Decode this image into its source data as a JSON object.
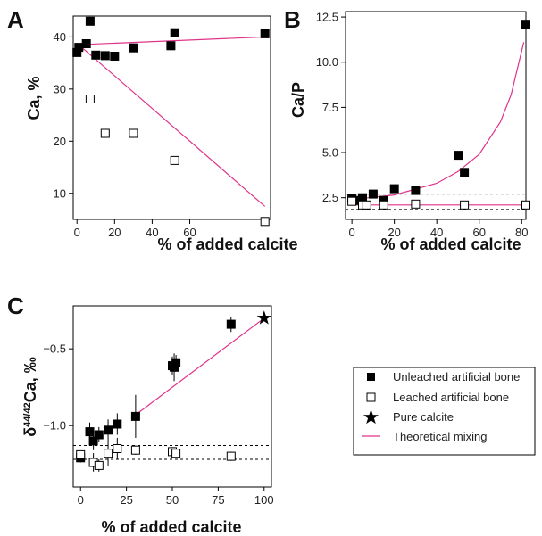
{
  "colors": {
    "mixing_line": "#e0338a",
    "marker_filled": "#000000",
    "marker_open_fill": "#ffffff",
    "reference_line": "#000000"
  },
  "legend": {
    "items": [
      {
        "label": "Unleached artificial bone",
        "marker": "filled-square"
      },
      {
        "label": "Leached artificial bone",
        "marker": "open-square"
      },
      {
        "label": "Pure calcite",
        "marker": "star"
      },
      {
        "label": "Theoretical mixing",
        "marker": "line"
      }
    ]
  },
  "chart_data": [
    {
      "panel": "A",
      "type": "scatter",
      "xlabel": "% of added calcite",
      "ylabel": "Ca, %",
      "xlim": [
        -2,
        103
      ],
      "ylim": [
        5,
        44
      ],
      "xticks": [
        0,
        20,
        40,
        60
      ],
      "yticks": [
        10,
        20,
        30,
        40
      ],
      "series": [
        {
          "marker": "filled-square",
          "x": [
            0,
            1,
            5,
            7,
            10,
            15,
            20,
            30,
            50,
            52,
            100
          ],
          "y": [
            37,
            38,
            38.7,
            43,
            36.5,
            36.4,
            36.3,
            37.9,
            38.3,
            40.8,
            40.6
          ]
        },
        {
          "marker": "open-square",
          "x": [
            7,
            15,
            30,
            52,
            100
          ],
          "y": [
            28.1,
            21.5,
            21.5,
            16.3,
            4.6
          ]
        },
        {
          "marker": "line",
          "x": [
            0,
            100
          ],
          "y": [
            38.5,
            40
          ]
        },
        {
          "marker": "line",
          "x": [
            0,
            100
          ],
          "y": [
            38.8,
            7.5
          ]
        }
      ]
    },
    {
      "panel": "B",
      "type": "scatter",
      "xlabel": "% of added calcite",
      "ylabel": "Ca/P",
      "xlim": [
        -3,
        82
      ],
      "ylim": [
        1.3,
        12.8
      ],
      "xticks": [
        0,
        20,
        40,
        60,
        80
      ],
      "yticks": [
        "2.5",
        "5.0",
        "7.5",
        "10.0",
        "12.5"
      ],
      "hlines": [
        2.7,
        1.85
      ],
      "series": [
        {
          "marker": "filled-square",
          "x": [
            0,
            1,
            5,
            10,
            15,
            20,
            30,
            50,
            53,
            82
          ],
          "y": [
            2.45,
            2.35,
            2.5,
            2.7,
            2.35,
            3.0,
            2.9,
            4.85,
            3.9,
            12.1
          ]
        },
        {
          "marker": "open-square",
          "x": [
            0,
            5,
            7,
            15,
            30,
            53,
            82
          ],
          "y": [
            2.3,
            2.1,
            2.1,
            2.1,
            2.15,
            2.1,
            2.1
          ]
        },
        {
          "marker": "line",
          "x": [
            0,
            20,
            40,
            50,
            60,
            70,
            75,
            81
          ],
          "y": [
            2.4,
            2.65,
            3.3,
            3.95,
            4.9,
            6.7,
            8.2,
            11.1
          ]
        },
        {
          "marker": "line",
          "x": [
            0,
            81
          ],
          "y": [
            2.1,
            2.1
          ]
        }
      ]
    },
    {
      "panel": "C",
      "type": "scatter",
      "xlabel": "% of added calcite",
      "ylabel": "δ44/42Ca, ‰",
      "ylabel_parts": {
        "delta": "δ",
        "superscript": "44/42",
        "rest": "Ca, ‰"
      },
      "xlim": [
        -4,
        104
      ],
      "ylim": [
        -1.4,
        -0.22
      ],
      "xticks": [
        0,
        25,
        50,
        75,
        100
      ],
      "yticks": [
        "−1.0",
        "−0.5"
      ],
      "hlines": [
        -1.13,
        -1.22
      ],
      "series": [
        {
          "marker": "filled-square",
          "x": [
            0,
            5,
            7,
            10,
            15,
            20,
            30,
            50,
            51,
            52,
            82
          ],
          "y": [
            -1.21,
            -1.04,
            -1.1,
            -1.06,
            -1.03,
            -0.99,
            -0.94,
            -0.61,
            -0.62,
            -0.59,
            -0.34
          ],
          "err": [
            0.03,
            0.06,
            0.06,
            0.05,
            0.07,
            0.07,
            0.14,
            0.06,
            0.09,
            0.05,
            0.05
          ]
        },
        {
          "marker": "open-square",
          "x": [
            0,
            7,
            10,
            15,
            20,
            30,
            50,
            52,
            82
          ],
          "y": [
            -1.19,
            -1.24,
            -1.26,
            -1.18,
            -1.15,
            -1.16,
            -1.17,
            -1.18,
            -1.2
          ],
          "err": [
            0.02,
            0.06,
            0.04,
            0.08,
            0.07,
            0.03,
            0.03,
            0.03,
            0.03
          ]
        },
        {
          "marker": "star",
          "x": [
            100
          ],
          "y": [
            -0.3
          ]
        },
        {
          "marker": "line",
          "x": [
            30,
            100
          ],
          "y": [
            -0.93,
            -0.3
          ]
        }
      ]
    }
  ]
}
